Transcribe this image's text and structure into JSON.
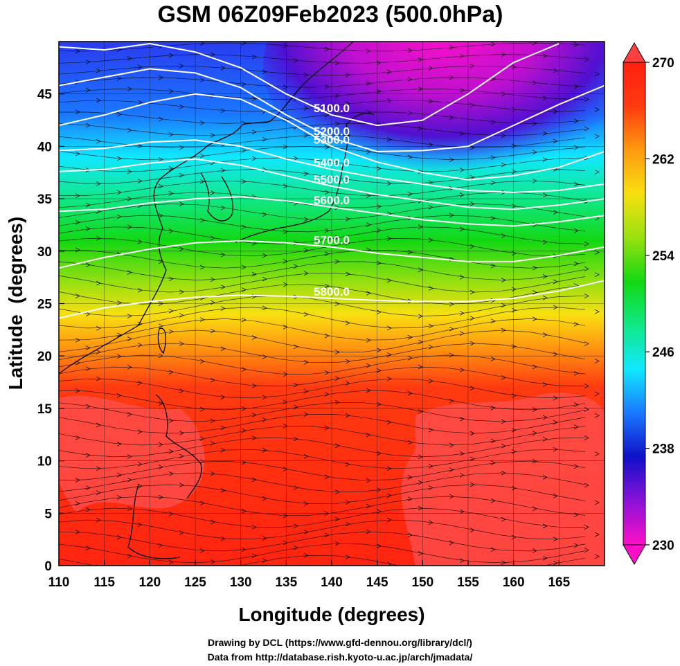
{
  "chart_data": {
    "type": "heatmap",
    "title": "GSM 06Z09Feb2023 (500.0hPa)",
    "xlabel": "Longitude (degrees)",
    "ylabel": "Latitude  (degrees)",
    "xlim": [
      110,
      170
    ],
    "ylim": [
      0,
      50
    ],
    "x_ticks": [
      110,
      115,
      120,
      125,
      130,
      135,
      140,
      145,
      150,
      155,
      160,
      165
    ],
    "y_ticks": [
      0,
      5,
      10,
      15,
      20,
      25,
      30,
      35,
      40,
      45
    ],
    "colorbar": {
      "min": 230,
      "max": 270,
      "ticks": [
        230,
        238,
        246,
        254,
        262,
        270
      ],
      "colors": [
        "#ff10c8",
        "#8a12d8",
        "#1010c8",
        "#1a78ff",
        "#10e8ff",
        "#10e888",
        "#12d812",
        "#98e010",
        "#f8e010",
        "#ff9a10",
        "#ff3a10",
        "#ff2010"
      ]
    },
    "contours": [
      {
        "label": "5100.0",
        "value": 5100,
        "points": [
          [
            110,
            49.5
          ],
          [
            115,
            49.2
          ],
          [
            120,
            49.8
          ],
          [
            125,
            49
          ],
          [
            130,
            47.5
          ],
          [
            135,
            45
          ],
          [
            140,
            43
          ],
          [
            145,
            42
          ],
          [
            150,
            42.5
          ],
          [
            155,
            45
          ],
          [
            160,
            48
          ],
          [
            165,
            49.8
          ]
        ]
      },
      {
        "label": "5200.0",
        "value": 5200,
        "points": [
          [
            110,
            45.8
          ],
          [
            115,
            46.6
          ],
          [
            120,
            47.4
          ],
          [
            125,
            47
          ],
          [
            130,
            45.6
          ],
          [
            135,
            43
          ],
          [
            140,
            40.8
          ],
          [
            145,
            39.5
          ],
          [
            150,
            39.6
          ],
          [
            155,
            40
          ],
          [
            160,
            42
          ],
          [
            165,
            44
          ],
          [
            170,
            45.8
          ]
        ]
      },
      {
        "label": "5300.0",
        "value": 5300,
        "points": [
          [
            110,
            42
          ],
          [
            115,
            43
          ],
          [
            120,
            44.2
          ],
          [
            125,
            45
          ],
          [
            130,
            44.5
          ],
          [
            135,
            42.5
          ],
          [
            140,
            40
          ],
          [
            145,
            38.5
          ],
          [
            150,
            37.5
          ],
          [
            155,
            36.8
          ],
          [
            160,
            37.2
          ],
          [
            165,
            38
          ],
          [
            170,
            39.5
          ]
        ]
      },
      {
        "label": "5400.0",
        "value": 5400,
        "points": [
          [
            110,
            39.6
          ],
          [
            115,
            39.8
          ],
          [
            120,
            40.4
          ],
          [
            125,
            40.6
          ],
          [
            130,
            40
          ],
          [
            135,
            38.8
          ],
          [
            140,
            37.8
          ],
          [
            145,
            37
          ],
          [
            150,
            36.4
          ],
          [
            155,
            35.8
          ],
          [
            160,
            35.6
          ],
          [
            165,
            35.8
          ],
          [
            170,
            36.4
          ]
        ]
      },
      {
        "label": "5500.0",
        "value": 5500,
        "points": [
          [
            110,
            37.6
          ],
          [
            115,
            37.8
          ],
          [
            120,
            38.4
          ],
          [
            125,
            38.8
          ],
          [
            130,
            38.2
          ],
          [
            135,
            37.2
          ],
          [
            140,
            36.2
          ],
          [
            145,
            35.4
          ],
          [
            150,
            34.8
          ],
          [
            155,
            34.2
          ],
          [
            160,
            34
          ],
          [
            165,
            34.4
          ],
          [
            170,
            35
          ]
        ]
      },
      {
        "label": "5600.0",
        "value": 5600,
        "points": [
          [
            110,
            33.8
          ],
          [
            115,
            34
          ],
          [
            120,
            34.6
          ],
          [
            125,
            35
          ],
          [
            130,
            35.2
          ],
          [
            135,
            34.8
          ],
          [
            140,
            34.2
          ],
          [
            145,
            33.6
          ],
          [
            150,
            33
          ],
          [
            155,
            32.6
          ],
          [
            160,
            32.4
          ],
          [
            165,
            32.8
          ],
          [
            170,
            33.4
          ]
        ]
      },
      {
        "label": "5700.0",
        "value": 5700,
        "points": [
          [
            110,
            28.4
          ],
          [
            115,
            29.4
          ],
          [
            120,
            30.2
          ],
          [
            125,
            30.8
          ],
          [
            130,
            31
          ],
          [
            135,
            30.8
          ],
          [
            140,
            30.4
          ],
          [
            145,
            29.8
          ],
          [
            150,
            29.4
          ],
          [
            155,
            29
          ],
          [
            160,
            29
          ],
          [
            165,
            29.6
          ],
          [
            170,
            30.4
          ]
        ]
      },
      {
        "label": "5800.0",
        "value": 5800,
        "points": [
          [
            110,
            23.6
          ],
          [
            115,
            24.6
          ],
          [
            120,
            25.2
          ],
          [
            125,
            25.6
          ],
          [
            130,
            25.8
          ],
          [
            135,
            25.7
          ],
          [
            140,
            25.5
          ],
          [
            145,
            25.3
          ],
          [
            150,
            25.2
          ],
          [
            155,
            25.2
          ],
          [
            160,
            25.5
          ],
          [
            165,
            26.2
          ],
          [
            170,
            27.2
          ]
        ]
      }
    ]
  },
  "credits": {
    "line1": "Drawing by DCL (https://www.gfd-dennou.org/library/dcl/)",
    "line2": "Data from http://database.rish.kyoto-u.ac.jp/arch/jmadata/"
  }
}
